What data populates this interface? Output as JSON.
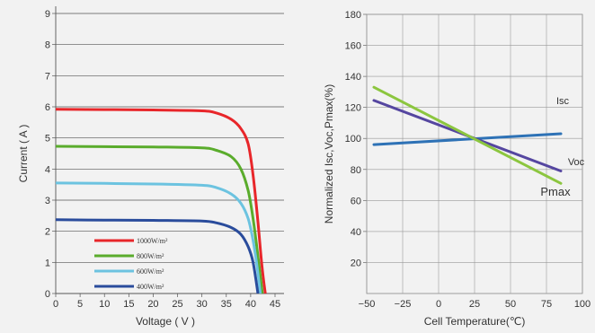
{
  "chart_data": [
    {
      "type": "line",
      "xlabel": "Voltage ( V )",
      "ylabel": "Current ( A )",
      "xlim": [
        0,
        45
      ],
      "ylim": [
        0,
        9
      ],
      "xticks": [
        "0",
        "5",
        "10",
        "15",
        "20",
        "25",
        "30",
        "35",
        "40",
        "45"
      ],
      "yticks": [
        "0",
        "1",
        "2",
        "3",
        "4",
        "5",
        "6",
        "7",
        "8",
        "9"
      ],
      "grid": "horizontal",
      "legend_position": "bottom-left",
      "series": [
        {
          "name": "1000W/m²",
          "color": "#e8262a",
          "x": [
            0,
            10,
            20,
            30,
            33,
            36,
            38,
            39.5,
            40.5,
            41.5,
            42.3,
            43
          ],
          "y": [
            5.92,
            5.91,
            5.9,
            5.87,
            5.8,
            5.6,
            5.3,
            4.8,
            3.8,
            2.3,
            0.9,
            0
          ]
        },
        {
          "name": "800W/m²",
          "color": "#5aac2c",
          "x": [
            0,
            10,
            20,
            30,
            33,
            36,
            38,
            39.5,
            40.5,
            41.5,
            42.4
          ],
          "y": [
            4.73,
            4.72,
            4.71,
            4.68,
            4.6,
            4.4,
            4.0,
            3.3,
            2.4,
            1.2,
            0
          ]
        },
        {
          "name": "600W/m²",
          "color": "#6cc3e0",
          "x": [
            0,
            10,
            20,
            30,
            33,
            36,
            38,
            39.5,
            40.5,
            41.2,
            42
          ],
          "y": [
            3.55,
            3.54,
            3.52,
            3.48,
            3.4,
            3.2,
            2.9,
            2.4,
            1.7,
            1.0,
            0
          ]
        },
        {
          "name": "400W/m²",
          "color": "#2a4c9c",
          "x": [
            0,
            10,
            20,
            30,
            33,
            36,
            38,
            39.5,
            40.5,
            41.5
          ],
          "y": [
            2.37,
            2.36,
            2.35,
            2.33,
            2.27,
            2.12,
            1.9,
            1.5,
            1.0,
            0
          ]
        }
      ]
    },
    {
      "type": "line",
      "xlabel": "Cell Temperature(℃)",
      "ylabel": "Normalized Isc,Voc,Pmax(%)",
      "xlim": [
        -50,
        100
      ],
      "ylim": [
        0,
        180
      ],
      "xticks": [
        "−50",
        "−25",
        "0",
        "25",
        "50",
        "75",
        "100"
      ],
      "yticks": [
        "20",
        "40",
        "60",
        "80",
        "100",
        "120",
        "140",
        "160",
        "180"
      ],
      "grid": "both",
      "series": [
        {
          "name": "Isc",
          "color": "#2e72b6",
          "x": [
            -45,
            85
          ],
          "y": [
            96,
            103
          ]
        },
        {
          "name": "Voc",
          "color": "#5546a0",
          "x": [
            -45,
            85
          ],
          "y": [
            124.5,
            79
          ]
        },
        {
          "name": "Pmax",
          "color": "#8cc63f",
          "x": [
            -45,
            85
          ],
          "y": [
            133,
            71
          ]
        }
      ]
    }
  ]
}
